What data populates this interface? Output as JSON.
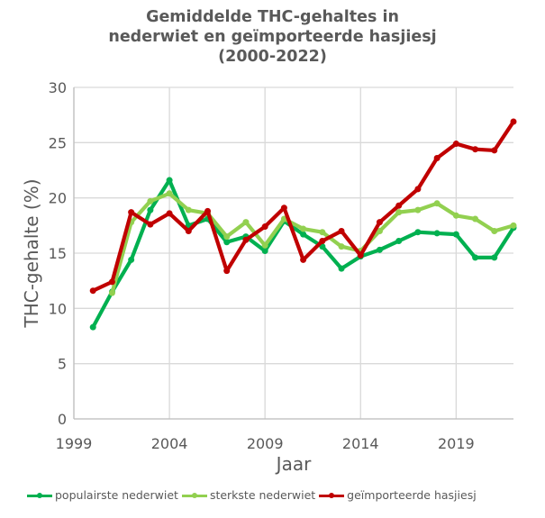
{
  "chart_data": {
    "type": "line",
    "title": "Gemiddelde THC-gehaltes in nederwiet en geïmporteerde hasjiesj (2000-2022)",
    "title_lines": [
      "Gemiddelde THC-gehaltes in",
      "nederwiet en geïmporteerde hasjiesj",
      "(2000-2022)"
    ],
    "xlabel": "Jaar",
    "ylabel": "THC-gehalte (%)",
    "xlim": [
      1999,
      2022
    ],
    "ylim": [
      0,
      30
    ],
    "x_ticks": [
      1999,
      2004,
      2009,
      2014,
      2019
    ],
    "y_ticks": [
      0,
      5,
      10,
      15,
      20,
      25,
      30
    ],
    "grid": true,
    "legend_position": "bottom",
    "x": [
      2000,
      2001,
      2002,
      2003,
      2004,
      2005,
      2006,
      2007,
      2008,
      2009,
      2010,
      2011,
      2012,
      2013,
      2014,
      2015,
      2016,
      2017,
      2018,
      2019,
      2020,
      2021,
      2022
    ],
    "series": [
      {
        "name": "populairste nederwiet",
        "color": "#00B050",
        "values": [
          8.3,
          11.5,
          14.4,
          18.9,
          21.6,
          17.5,
          18.1,
          16.0,
          16.5,
          15.2,
          17.9,
          16.7,
          15.6,
          13.6,
          14.7,
          15.3,
          16.1,
          16.9,
          16.8,
          16.7,
          14.6,
          14.6,
          17.3
        ]
      },
      {
        "name": "sterkste nederwiet",
        "color": "#92D050",
        "values": [
          null,
          11.4,
          17.8,
          19.7,
          20.4,
          18.9,
          18.6,
          16.5,
          17.8,
          15.7,
          18.1,
          17.2,
          16.9,
          15.6,
          15.2,
          17.0,
          18.7,
          18.9,
          19.5,
          18.4,
          18.1,
          17.0,
          17.5
        ]
      },
      {
        "name": "geïmporteerde hasjiesj",
        "color": "#C00000",
        "values": [
          11.6,
          12.4,
          18.7,
          17.6,
          18.6,
          17.0,
          18.8,
          13.4,
          16.2,
          17.4,
          19.1,
          14.4,
          16.1,
          17.0,
          14.8,
          17.8,
          19.3,
          20.8,
          23.6,
          24.9,
          24.4,
          24.3,
          26.9
        ]
      }
    ]
  }
}
